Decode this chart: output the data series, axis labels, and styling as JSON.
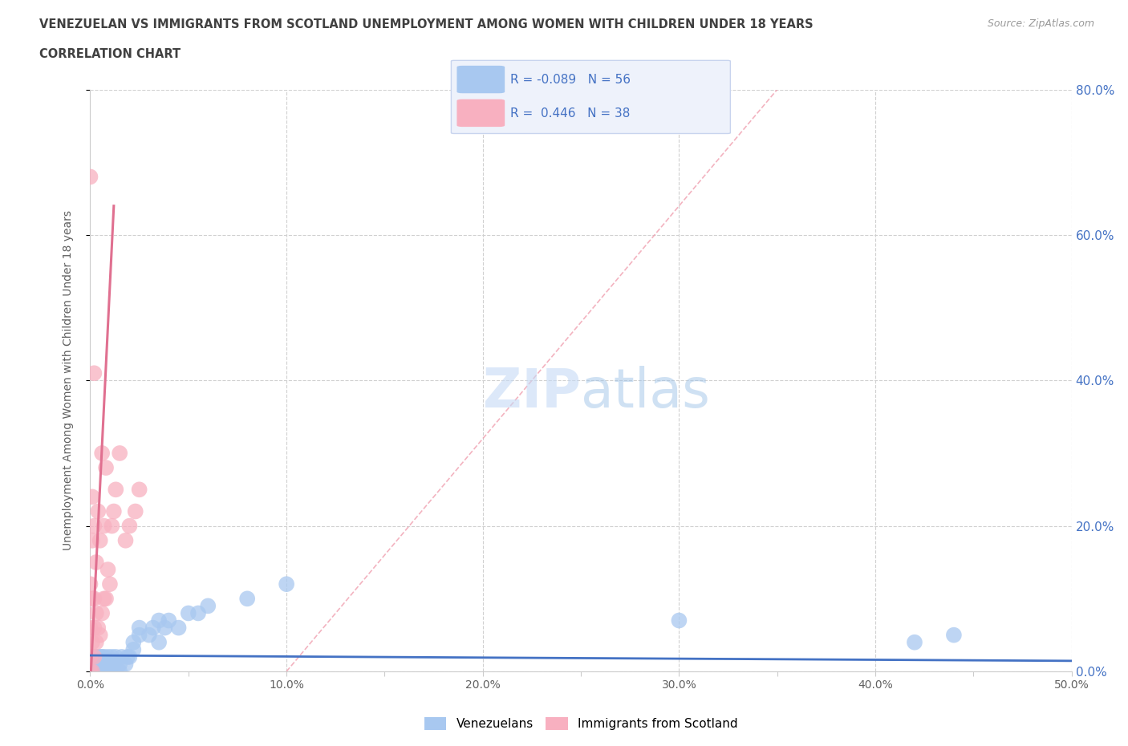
{
  "title_line1": "VENEZUELAN VS IMMIGRANTS FROM SCOTLAND UNEMPLOYMENT AMONG WOMEN WITH CHILDREN UNDER 18 YEARS",
  "title_line2": "CORRELATION CHART",
  "source_text": "Source: ZipAtlas.com",
  "ylabel": "Unemployment Among Women with Children Under 18 years",
  "xlim": [
    0.0,
    0.5
  ],
  "ylim": [
    0.0,
    0.8
  ],
  "xtick_labels": [
    "0.0%",
    "",
    "10.0%",
    "",
    "20.0%",
    "",
    "30.0%",
    "",
    "40.0%",
    "",
    "50.0%"
  ],
  "xtick_vals": [
    0.0,
    0.05,
    0.1,
    0.15,
    0.2,
    0.25,
    0.3,
    0.35,
    0.4,
    0.45,
    0.5
  ],
  "ytick_labels_right": [
    "0.0%",
    "20.0%",
    "40.0%",
    "60.0%",
    "80.0%"
  ],
  "ytick_vals_right": [
    0.0,
    0.2,
    0.4,
    0.6,
    0.8
  ],
  "watermark_zip": "ZIP",
  "watermark_atlas": "atlas",
  "venezuelans_R": -0.089,
  "venezuelans_N": 56,
  "scotland_R": 0.446,
  "scotland_N": 38,
  "venezuelans_color": "#a8c8f0",
  "scotland_color": "#f8b0c0",
  "venezuelans_line_color": "#4472c4",
  "scotland_line_color": "#e07090",
  "title_color": "#404040",
  "axis_label_color": "#606060",
  "right_axis_color": "#4472c4",
  "venezuelans_x": [
    0.002,
    0.002,
    0.002,
    0.002,
    0.003,
    0.003,
    0.003,
    0.004,
    0.004,
    0.004,
    0.005,
    0.005,
    0.005,
    0.005,
    0.006,
    0.006,
    0.006,
    0.007,
    0.007,
    0.007,
    0.008,
    0.008,
    0.009,
    0.009,
    0.009,
    0.01,
    0.01,
    0.011,
    0.012,
    0.012,
    0.013,
    0.015,
    0.015,
    0.016,
    0.018,
    0.019,
    0.02,
    0.022,
    0.022,
    0.025,
    0.025,
    0.03,
    0.032,
    0.035,
    0.035,
    0.038,
    0.04,
    0.045,
    0.05,
    0.055,
    0.06,
    0.08,
    0.1,
    0.3,
    0.42,
    0.44
  ],
  "venezuelans_y": [
    0.0,
    0.0,
    0.01,
    0.02,
    0.0,
    0.01,
    0.02,
    0.0,
    0.01,
    0.02,
    0.0,
    0.0,
    0.01,
    0.02,
    0.0,
    0.01,
    0.02,
    0.0,
    0.01,
    0.02,
    0.0,
    0.01,
    0.0,
    0.01,
    0.02,
    0.0,
    0.01,
    0.02,
    0.0,
    0.01,
    0.02,
    0.0,
    0.01,
    0.02,
    0.01,
    0.02,
    0.02,
    0.03,
    0.04,
    0.05,
    0.06,
    0.05,
    0.06,
    0.07,
    0.04,
    0.06,
    0.07,
    0.06,
    0.08,
    0.08,
    0.09,
    0.1,
    0.12,
    0.07,
    0.04,
    0.05
  ],
  "scotland_x": [
    0.0,
    0.0,
    0.0,
    0.0,
    0.0,
    0.001,
    0.001,
    0.001,
    0.001,
    0.001,
    0.002,
    0.002,
    0.002,
    0.002,
    0.002,
    0.003,
    0.003,
    0.003,
    0.004,
    0.004,
    0.005,
    0.005,
    0.006,
    0.006,
    0.007,
    0.007,
    0.008,
    0.008,
    0.009,
    0.01,
    0.011,
    0.012,
    0.013,
    0.015,
    0.018,
    0.02,
    0.023,
    0.025
  ],
  "scotland_y": [
    0.0,
    0.02,
    0.06,
    0.12,
    0.68,
    0.0,
    0.04,
    0.1,
    0.18,
    0.24,
    0.02,
    0.06,
    0.1,
    0.2,
    0.41,
    0.04,
    0.08,
    0.15,
    0.06,
    0.22,
    0.05,
    0.18,
    0.08,
    0.3,
    0.1,
    0.2,
    0.1,
    0.28,
    0.14,
    0.12,
    0.2,
    0.22,
    0.25,
    0.3,
    0.18,
    0.2,
    0.22,
    0.25
  ]
}
